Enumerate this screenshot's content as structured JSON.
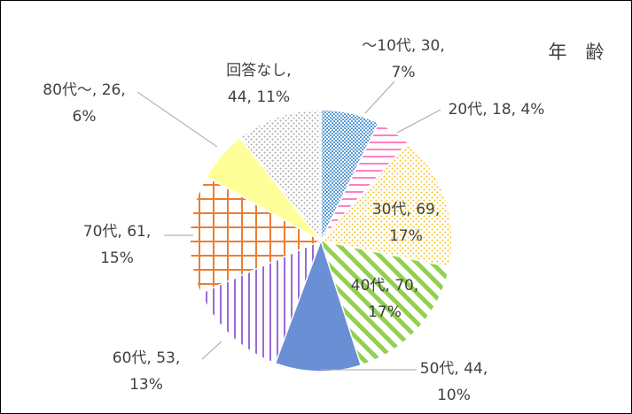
{
  "chart_data": {
    "type": "pie",
    "title": "年　齢",
    "values": [
      30,
      18,
      69,
      70,
      44,
      53,
      61,
      26,
      44
    ],
    "value_labels": [
      [
        "～10代, 30,",
        "7%"
      ],
      [
        "20代, 18, 4%"
      ],
      [
        "30代, 69,",
        "17%"
      ],
      [
        "40代, 70,",
        "17%"
      ],
      [
        "50代, 44,",
        "10%"
      ],
      [
        "60代, 53,",
        "13%"
      ],
      [
        "70代, 61,",
        "15%"
      ],
      [
        "80代～, 26,",
        "6%"
      ],
      [
        "回答なし,",
        "44, 11%"
      ]
    ],
    "colors": [
      "#5b9bd5",
      "#ff80c0",
      "#ffc000",
      "#92d050",
      "#6b8fd4",
      "#9a6ad6",
      "#ed7d31",
      "#ffff99",
      "#a6a6a6"
    ],
    "patterns": [
      "dense-dots",
      "horizontal",
      "dots",
      "diagonal",
      "solid",
      "vertical",
      "grid",
      "solid",
      "dots"
    ]
  }
}
